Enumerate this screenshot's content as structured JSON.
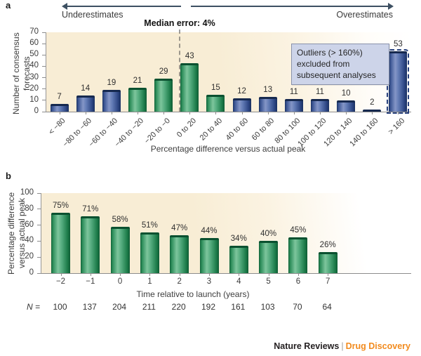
{
  "colors": {
    "arrow": "#3d5062",
    "cream": "#f8edd5",
    "note_bg": "#cdd4e9",
    "note_border": "#8992ab",
    "orange": "#f28b1e",
    "green_mid": "#7dc59c",
    "blue_mid": "#8496c7"
  },
  "footer": {
    "brand": "Nature Reviews",
    "separator": "|",
    "journal": "Drug Discovery"
  },
  "chart_data": [
    {
      "type": "bar",
      "panel": "a",
      "categories": [
        "< −80",
        "−80 to −60",
        "−60 to −40",
        "−40 to −20",
        "−20 to −0",
        "0 to 20",
        "20 to 40",
        "40 to 60",
        "60 to 80",
        "80 to 100",
        "100 to 120",
        "120 to 140",
        "140 to 160",
        "> 160"
      ],
      "values": [
        7,
        14,
        19,
        21,
        29,
        43,
        15,
        12,
        13,
        11,
        11,
        10,
        2,
        53
      ],
      "bar_colors": [
        "blue",
        "blue",
        "blue",
        "green",
        "green",
        "green",
        "green",
        "blue",
        "blue",
        "blue",
        "blue",
        "blue",
        "blue",
        "blue"
      ],
      "outlier_bar_index": 13,
      "xlabel": "Percentage difference versus actual peak",
      "ylabel": "Number of consensus forecasts",
      "ylabel_lines": [
        "Number of consensus",
        "forecasts"
      ],
      "ylim": [
        0,
        70
      ],
      "yticks": [
        0,
        10,
        20,
        30,
        40,
        50,
        60,
        70
      ],
      "grid": "off",
      "annotations": {
        "median_label": "Median error: 4%",
        "median_value_bin": "0 to 20",
        "left_arrow_label": "Underestimates",
        "right_arrow_label": "Overestimates",
        "outlier_note_lines": [
          "Outliers (> 160%)",
          "excluded from",
          "subsequent analyses"
        ]
      }
    },
    {
      "type": "bar",
      "panel": "b",
      "categories": [
        "−2",
        "−1",
        "0",
        "1",
        "2",
        "3",
        "4",
        "5",
        "6",
        "7"
      ],
      "values": [
        75,
        71,
        58,
        51,
        47,
        44,
        34,
        40,
        45,
        26
      ],
      "value_label_suffix": "%",
      "bar_color": "green",
      "xlabel": "Time relative to launch (years)",
      "ylabel": "Percentage difference versus actual peak",
      "ylabel_lines": [
        "Percentage difference",
        "versus actual peak"
      ],
      "ylim": [
        0,
        100
      ],
      "yticks": [
        0,
        20,
        40,
        60,
        80,
        100
      ],
      "grid": "off",
      "n_label": "N =",
      "n_values": [
        100,
        137,
        204,
        211,
        220,
        192,
        161,
        103,
        70,
        64
      ]
    }
  ]
}
